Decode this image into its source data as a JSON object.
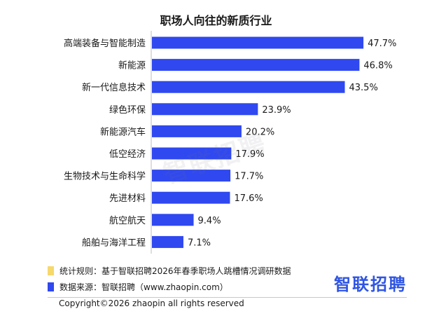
{
  "chart_data": {
    "type": "bar",
    "orientation": "horizontal",
    "title": "职场人向往的新质行业",
    "categories": [
      "高端装备与智能制造",
      "新能源",
      "新一代信息技术",
      "绿色环保",
      "新能源汽车",
      "低空经济",
      "生物技术与生命科学",
      "先进材料",
      "航空航天",
      "船舶与海洋工程"
    ],
    "values": [
      47.7,
      46.8,
      43.5,
      23.9,
      20.2,
      17.9,
      17.7,
      17.6,
      9.4,
      7.1
    ],
    "value_labels": [
      "47.7%",
      "46.8%",
      "43.5%",
      "23.9%",
      "20.2%",
      "17.9%",
      "17.7%",
      "17.6%",
      "9.4%",
      "7.1%"
    ],
    "unit": "%",
    "xlim": [
      0,
      50
    ],
    "bar_color": "#2f48f0",
    "xlabel": "",
    "ylabel": ""
  },
  "watermark": "智联招聘",
  "notes": [
    {
      "text": "统计规则：基于智联招聘2026年春季职场人跳槽情况调研数据",
      "color": "#f6d86b"
    },
    {
      "text": "数据来源：智联招聘（www.zhaopin.com）",
      "color": "#2f48f0"
    }
  ],
  "logo": "智联招聘",
  "copyright": "Copyright©2026 zhaopin all rights reserved"
}
